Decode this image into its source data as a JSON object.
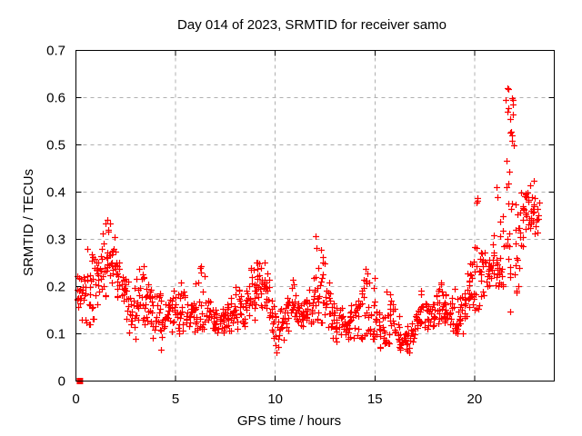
{
  "page": {
    "background": "#ffffff"
  },
  "chart_data": {
    "type": "scatter",
    "title": "Day 014 of 2023, SRMTID for receiver samo",
    "xlabel": "GPS time / hours",
    "ylabel": "SRMTID / TECUs",
    "xlim": [
      0,
      24
    ],
    "ylim": [
      0,
      0.7
    ],
    "xticks": {
      "values": [
        0,
        5,
        10,
        15,
        20
      ],
      "labels": [
        "0",
        "5",
        "10",
        "15",
        "20"
      ]
    },
    "yticks": {
      "values": [
        0,
        0.1,
        0.2,
        0.3,
        0.4,
        0.5,
        0.6,
        0.7
      ],
      "labels": [
        "0",
        "0.1",
        "0.2",
        "0.3",
        "0.4",
        "0.5",
        "0.6",
        "0.7"
      ]
    },
    "grid": true,
    "grid_style": "dashed",
    "legend": "none",
    "marker": "plus",
    "marker_size_px": 7,
    "marker_color": "#ff0000",
    "grid_color": "#b0b0b0",
    "axis_color": "#000000",
    "seed": 20230114,
    "series": [
      {
        "name": "SRMTID",
        "marker": "plus",
        "color": "#ff0000",
        "density_bins": {
          "bin_width_hours": 0.25,
          "format": [
            "t_start_hours",
            "y_min_tecus",
            "y_max_tecus",
            "count",
            "profile(b=band,l=low-heavy,h=high-heavy)"
          ],
          "bins": [
            [
              0.0,
              0.13,
              0.26,
              12,
              "b"
            ],
            [
              0.25,
              0.12,
              0.24,
              12,
              "b"
            ],
            [
              0.5,
              0.12,
              0.3,
              12,
              "l"
            ],
            [
              0.75,
              0.13,
              0.3,
              12,
              "l"
            ],
            [
              1.0,
              0.15,
              0.3,
              13,
              "b"
            ],
            [
              1.25,
              0.18,
              0.39,
              14,
              "l"
            ],
            [
              1.5,
              0.2,
              0.36,
              14,
              "b"
            ],
            [
              1.75,
              0.19,
              0.31,
              14,
              "b"
            ],
            [
              2.0,
              0.15,
              0.3,
              13,
              "b"
            ],
            [
              2.25,
              0.12,
              0.27,
              12,
              "b"
            ],
            [
              2.5,
              0.1,
              0.23,
              12,
              "b"
            ],
            [
              2.75,
              0.08,
              0.2,
              12,
              "b"
            ],
            [
              3.0,
              0.1,
              0.26,
              12,
              "b"
            ],
            [
              3.25,
              0.12,
              0.285,
              12,
              "l"
            ],
            [
              3.5,
              0.1,
              0.25,
              12,
              "b"
            ],
            [
              3.75,
              0.08,
              0.22,
              12,
              "b"
            ],
            [
              4.0,
              0.08,
              0.2,
              12,
              "b"
            ],
            [
              4.25,
              0.06,
              0.18,
              12,
              "b"
            ],
            [
              4.5,
              0.07,
              0.2,
              12,
              "b"
            ],
            [
              4.75,
              0.08,
              0.22,
              12,
              "b"
            ],
            [
              5.0,
              0.09,
              0.2,
              12,
              "b"
            ],
            [
              5.25,
              0.1,
              0.22,
              12,
              "b"
            ],
            [
              5.5,
              0.09,
              0.18,
              12,
              "b"
            ],
            [
              5.75,
              0.1,
              0.2,
              12,
              "b"
            ],
            [
              6.0,
              0.1,
              0.25,
              12,
              "l"
            ],
            [
              6.25,
              0.11,
              0.25,
              12,
              "l"
            ],
            [
              6.5,
              0.1,
              0.18,
              12,
              "b"
            ],
            [
              6.75,
              0.09,
              0.16,
              12,
              "b"
            ],
            [
              7.0,
              0.09,
              0.16,
              12,
              "b"
            ],
            [
              7.25,
              0.1,
              0.17,
              12,
              "b"
            ],
            [
              7.5,
              0.1,
              0.19,
              12,
              "b"
            ],
            [
              7.75,
              0.1,
              0.2,
              12,
              "b"
            ],
            [
              8.0,
              0.1,
              0.21,
              12,
              "b"
            ],
            [
              8.25,
              0.1,
              0.19,
              12,
              "b"
            ],
            [
              8.5,
              0.11,
              0.22,
              12,
              "b"
            ],
            [
              8.75,
              0.12,
              0.25,
              13,
              "b"
            ],
            [
              9.0,
              0.13,
              0.28,
              14,
              "b"
            ],
            [
              9.25,
              0.13,
              0.27,
              14,
              "b"
            ],
            [
              9.5,
              0.11,
              0.24,
              12,
              "b"
            ],
            [
              9.75,
              0.08,
              0.18,
              12,
              "b"
            ],
            [
              10.0,
              0.05,
              0.16,
              12,
              "b"
            ],
            [
              10.25,
              0.08,
              0.17,
              12,
              "b"
            ],
            [
              10.5,
              0.1,
              0.2,
              12,
              "b"
            ],
            [
              10.75,
              0.11,
              0.22,
              13,
              "b"
            ],
            [
              11.0,
              0.1,
              0.19,
              12,
              "b"
            ],
            [
              11.25,
              0.1,
              0.18,
              12,
              "b"
            ],
            [
              11.5,
              0.1,
              0.2,
              12,
              "b"
            ],
            [
              11.75,
              0.12,
              0.26,
              13,
              "l"
            ],
            [
              12.0,
              0.13,
              0.315,
              14,
              "l"
            ],
            [
              12.25,
              0.12,
              0.28,
              13,
              "l"
            ],
            [
              12.5,
              0.1,
              0.22,
              12,
              "b"
            ],
            [
              12.75,
              0.08,
              0.18,
              12,
              "b"
            ],
            [
              13.0,
              0.08,
              0.17,
              12,
              "b"
            ],
            [
              13.25,
              0.07,
              0.16,
              12,
              "b"
            ],
            [
              13.5,
              0.07,
              0.15,
              12,
              "b"
            ],
            [
              13.75,
              0.08,
              0.18,
              12,
              "b"
            ],
            [
              14.0,
              0.09,
              0.2,
              12,
              "b"
            ],
            [
              14.25,
              0.09,
              0.22,
              12,
              "l"
            ],
            [
              14.5,
              0.1,
              0.28,
              13,
              "l"
            ],
            [
              14.75,
              0.09,
              0.22,
              12,
              "l"
            ],
            [
              15.0,
              0.08,
              0.18,
              12,
              "b"
            ],
            [
              15.25,
              0.06,
              0.16,
              12,
              "b"
            ],
            [
              15.5,
              0.08,
              0.22,
              12,
              "l"
            ],
            [
              15.75,
              0.08,
              0.2,
              12,
              "b"
            ],
            [
              16.0,
              0.06,
              0.14,
              12,
              "b"
            ],
            [
              16.25,
              0.05,
              0.12,
              12,
              "b"
            ],
            [
              16.5,
              0.05,
              0.13,
              12,
              "b"
            ],
            [
              16.75,
              0.06,
              0.14,
              12,
              "b"
            ],
            [
              17.0,
              0.08,
              0.18,
              12,
              "b"
            ],
            [
              17.25,
              0.1,
              0.2,
              12,
              "b"
            ],
            [
              17.5,
              0.1,
              0.19,
              12,
              "b"
            ],
            [
              17.75,
              0.1,
              0.18,
              12,
              "b"
            ],
            [
              18.0,
              0.1,
              0.2,
              12,
              "b"
            ],
            [
              18.25,
              0.1,
              0.21,
              12,
              "b"
            ],
            [
              18.5,
              0.11,
              0.22,
              12,
              "b"
            ],
            [
              18.75,
              0.1,
              0.2,
              12,
              "b"
            ],
            [
              19.0,
              0.07,
              0.18,
              12,
              "b"
            ],
            [
              19.25,
              0.08,
              0.2,
              12,
              "b"
            ],
            [
              19.5,
              0.12,
              0.25,
              13,
              "b"
            ],
            [
              19.75,
              0.15,
              0.28,
              13,
              "b"
            ],
            [
              20.0,
              0.15,
              0.39,
              13,
              "l"
            ],
            [
              20.25,
              0.15,
              0.3,
              13,
              "b"
            ],
            [
              20.5,
              0.17,
              0.3,
              13,
              "b"
            ],
            [
              20.75,
              0.18,
              0.32,
              13,
              "b"
            ],
            [
              21.0,
              0.2,
              0.42,
              14,
              "l"
            ],
            [
              21.25,
              0.2,
              0.38,
              13,
              "l"
            ],
            [
              21.5,
              0.25,
              0.62,
              16,
              "h"
            ],
            [
              21.75,
              0.13,
              0.6,
              16,
              "h"
            ],
            [
              22.0,
              0.13,
              0.4,
              13,
              "b"
            ],
            [
              22.25,
              0.25,
              0.42,
              13,
              "b"
            ],
            [
              22.5,
              0.28,
              0.45,
              14,
              "b"
            ],
            [
              22.75,
              0.28,
              0.44,
              13,
              "b"
            ],
            [
              23.0,
              0.3,
              0.42,
              10,
              "b"
            ]
          ]
        },
        "outlier_points": [
          {
            "x": 0.2,
            "y": 0.0,
            "marker": "filled-square"
          }
        ]
      }
    ]
  }
}
